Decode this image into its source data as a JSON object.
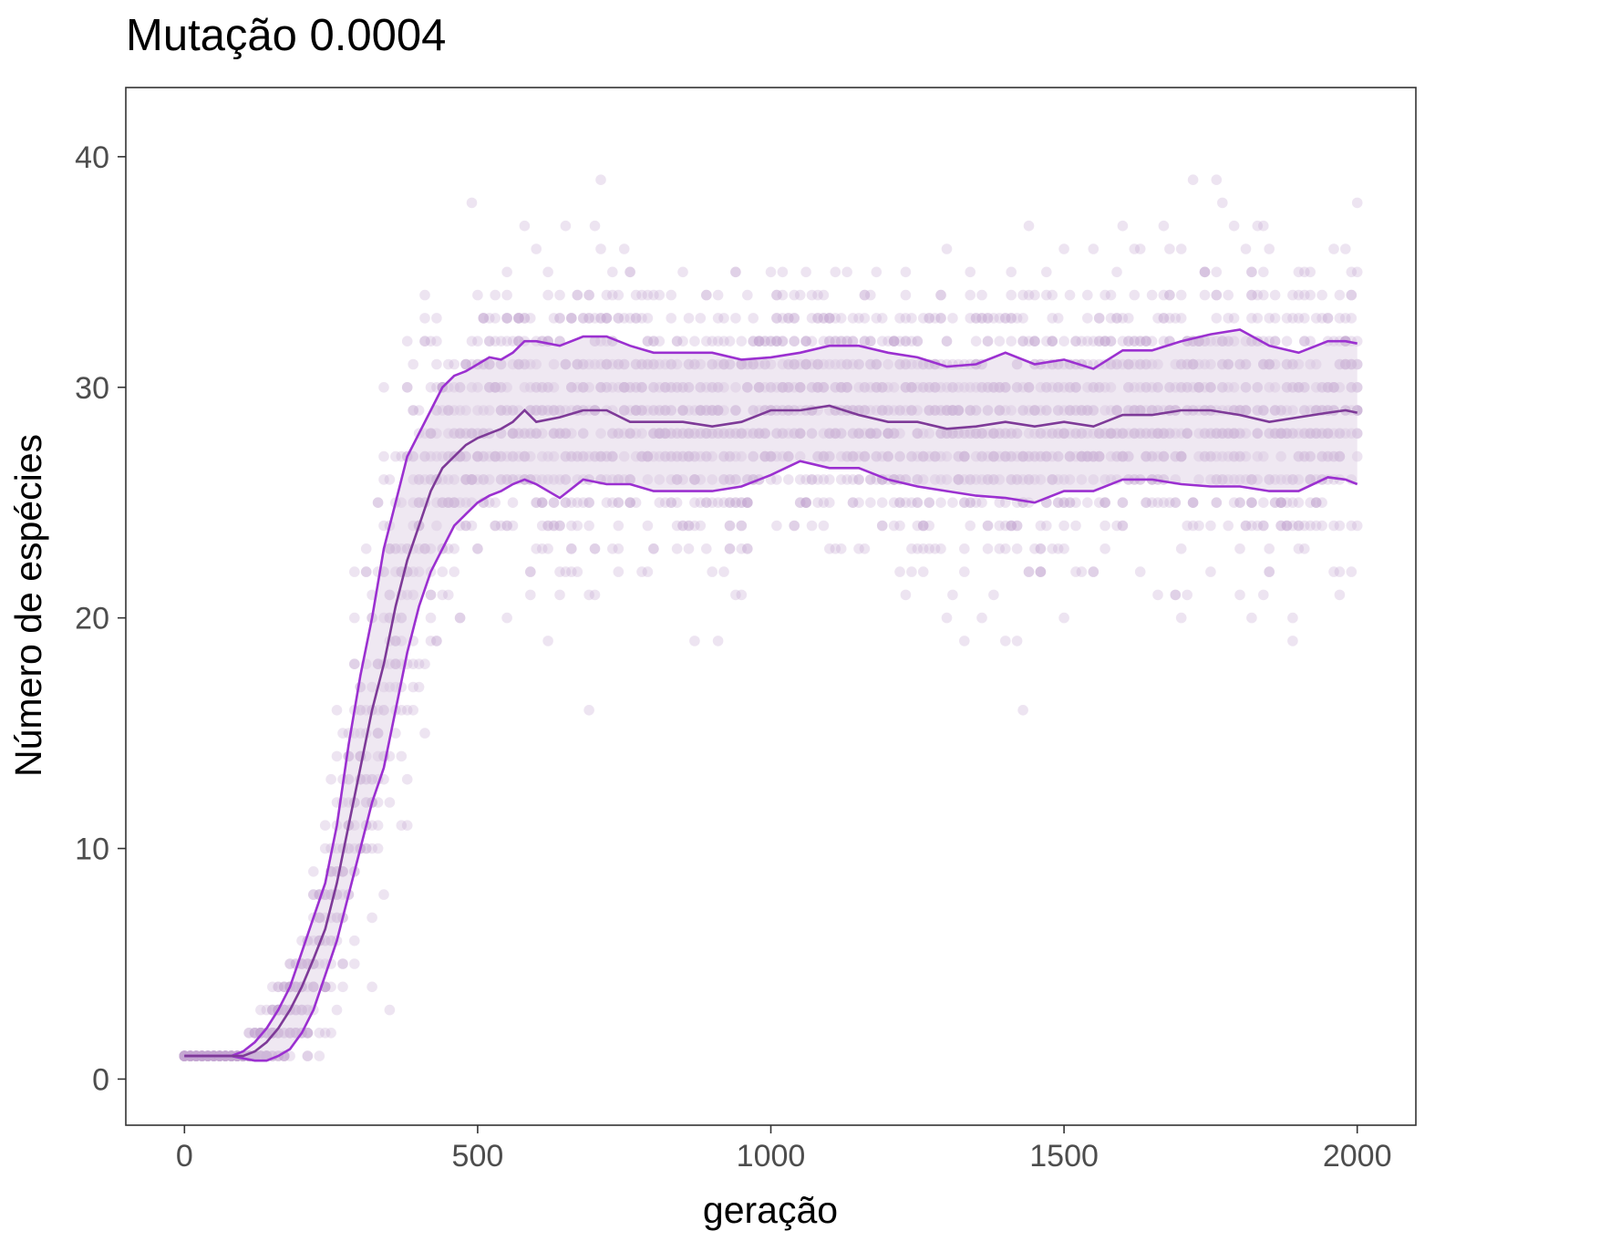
{
  "chart_data": {
    "type": "scatter",
    "title": "Mutação 0.0004",
    "xlabel": "geração",
    "ylabel": "Número de espécies",
    "xlim": [
      -100,
      2100
    ],
    "ylim": [
      -2,
      43
    ],
    "x_ticks": [
      0,
      500,
      1000,
      1500,
      2000
    ],
    "y_ticks": [
      0,
      10,
      20,
      30,
      40
    ],
    "grid": false,
    "legend": "none",
    "colors": {
      "points": "#c3a7cf",
      "band_fill": "#dccbe3",
      "quantile_lines": "#9b30d0",
      "mean_line": "#7e3a98",
      "panel_border": "#333333"
    },
    "series": [
      {
        "role": "upper-quantile",
        "x": [
          0,
          50,
          80,
          100,
          120,
          140,
          160,
          180,
          200,
          220,
          240,
          260,
          280,
          300,
          320,
          340,
          360,
          380,
          400,
          420,
          440,
          460,
          480,
          500,
          520,
          540,
          560,
          580,
          600,
          640,
          680,
          720,
          760,
          800,
          850,
          900,
          950,
          1000,
          1050,
          1100,
          1150,
          1200,
          1250,
          1300,
          1350,
          1400,
          1450,
          1500,
          1550,
          1600,
          1650,
          1700,
          1750,
          1800,
          1850,
          1900,
          1950,
          1980,
          2000
        ],
        "y": [
          1,
          1,
          1,
          1.2,
          1.6,
          2.2,
          3,
          4,
          5.5,
          7,
          8.5,
          11,
          14.5,
          17.5,
          20,
          23,
          25,
          27,
          28,
          29,
          30,
          30.5,
          30.7,
          31,
          31.3,
          31.2,
          31.5,
          32,
          32,
          31.8,
          32.2,
          32.2,
          31.8,
          31.5,
          31.5,
          31.5,
          31.2,
          31.3,
          31.5,
          31.8,
          31.8,
          31.5,
          31.3,
          30.9,
          31,
          31.5,
          31,
          31.2,
          30.8,
          31.6,
          31.6,
          32,
          32.3,
          32.5,
          31.8,
          31.5,
          32,
          32,
          31.9
        ]
      },
      {
        "role": "mean",
        "x": [
          0,
          50,
          80,
          100,
          120,
          140,
          160,
          180,
          200,
          220,
          240,
          260,
          280,
          300,
          320,
          340,
          360,
          380,
          400,
          420,
          440,
          460,
          480,
          500,
          520,
          540,
          560,
          580,
          600,
          640,
          680,
          720,
          760,
          800,
          850,
          900,
          950,
          1000,
          1050,
          1100,
          1150,
          1200,
          1250,
          1300,
          1350,
          1400,
          1450,
          1500,
          1550,
          1600,
          1650,
          1700,
          1750,
          1800,
          1850,
          1900,
          1950,
          1980,
          2000
        ],
        "y": [
          1,
          1,
          1,
          1,
          1.2,
          1.6,
          2.2,
          3,
          4,
          5.2,
          6.5,
          8.5,
          11,
          13.5,
          16,
          18,
          20.5,
          22.5,
          24,
          25.5,
          26.5,
          27,
          27.5,
          27.8,
          28,
          28.2,
          28.5,
          29,
          28.5,
          28.7,
          29,
          29,
          28.5,
          28.5,
          28.5,
          28.3,
          28.5,
          29,
          29,
          29.2,
          28.8,
          28.5,
          28.5,
          28.2,
          28.3,
          28.5,
          28.3,
          28.5,
          28.3,
          28.8,
          28.8,
          29,
          29,
          28.8,
          28.5,
          28.7,
          28.9,
          29,
          28.9
        ]
      },
      {
        "role": "lower-quantile",
        "x": [
          0,
          50,
          80,
          100,
          120,
          140,
          160,
          180,
          200,
          220,
          240,
          260,
          280,
          300,
          320,
          340,
          360,
          380,
          400,
          420,
          440,
          460,
          480,
          500,
          520,
          540,
          560,
          580,
          600,
          640,
          680,
          720,
          760,
          800,
          850,
          900,
          950,
          1000,
          1050,
          1100,
          1150,
          1200,
          1250,
          1300,
          1350,
          1400,
          1450,
          1500,
          1550,
          1600,
          1650,
          1700,
          1750,
          1800,
          1850,
          1900,
          1950,
          1980,
          2000
        ],
        "y": [
          1,
          1,
          1,
          0.9,
          0.8,
          0.8,
          1,
          1.3,
          2,
          3,
          4.5,
          6,
          8,
          10,
          12,
          13.5,
          16,
          18.5,
          20.5,
          22,
          23,
          24,
          24.5,
          25,
          25.3,
          25.5,
          25.8,
          26,
          25.8,
          25.2,
          26,
          25.8,
          25.8,
          25.5,
          25.5,
          25.5,
          25.7,
          26.2,
          26.8,
          26.5,
          26.5,
          26,
          25.7,
          25.5,
          25.3,
          25.2,
          25,
          25.5,
          25.5,
          26,
          26,
          25.8,
          25.7,
          25.7,
          25.5,
          25.5,
          26.1,
          26,
          25.8
        ]
      }
    ],
    "scatter_points": {
      "x_start": 0,
      "x_end": 2000,
      "x_step": 10,
      "count_per_x": 15,
      "description_of_spread": "repeated simulation runs shown as semi-transparent integer-valued points around the mean curve"
    }
  }
}
